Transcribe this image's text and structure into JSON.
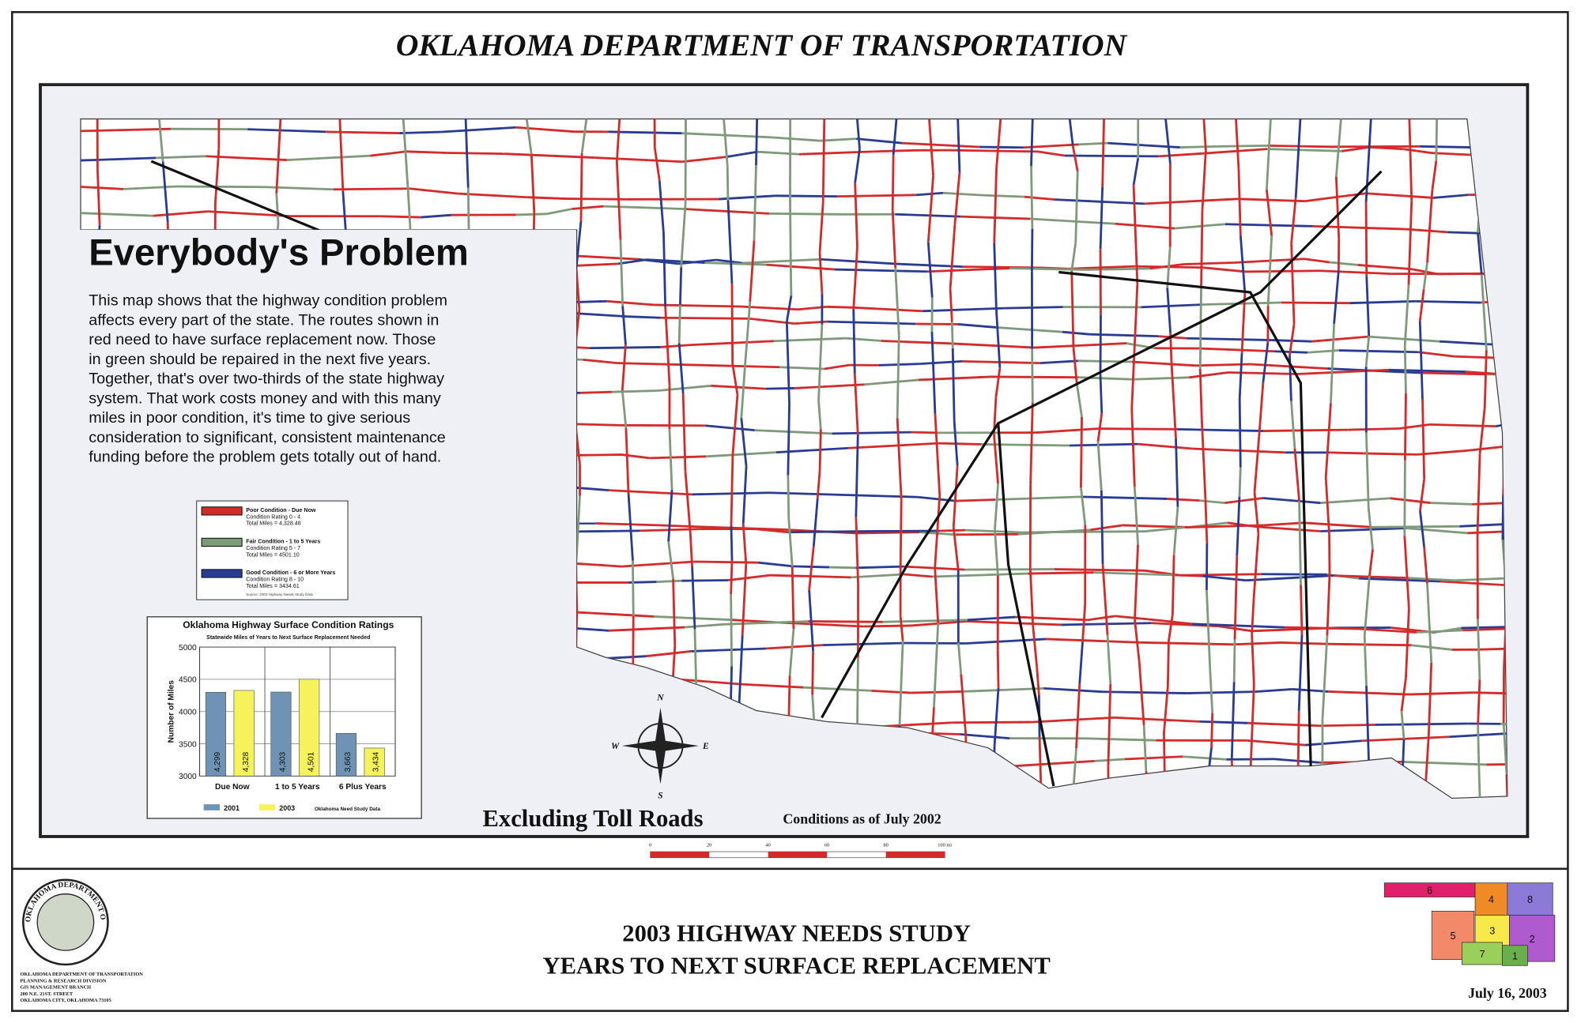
{
  "header": {
    "title": "OKLAHOMA DEPARTMENT OF TRANSPORTATION"
  },
  "panel": {
    "heading": "Everybody's Problem",
    "body_lines": [
      "This map shows that the highway condition problem",
      "affects every part of the state.  The routes shown in",
      "red need to have surface replacement now.  Those",
      "in green should be repaired in the next five years.",
      "Together, that's over two-thirds of the state highway",
      "system.  That work costs money and with this many",
      "miles in poor condition, it's time to give serious",
      "consideration to significant, consistent maintenance",
      "funding before the problem gets totally out of hand."
    ]
  },
  "legend": {
    "items": [
      {
        "color": "#d42a2a",
        "lines": [
          "Poor Condition - Due Now",
          "Condition Rating 0 - 4",
          "Total Miles = 4,328.48"
        ]
      },
      {
        "color": "#7f9a7a",
        "lines": [
          "Fair Condition - 1 to 5 Years",
          "Condition Rating 5 - 7",
          "Total Miles = 4501.10"
        ]
      },
      {
        "color": "#283c96",
        "lines": [
          "Good Condition - 6 or More Years",
          "Condition Rating 8 - 10",
          "Total Miles = 3434.61"
        ]
      }
    ],
    "source": "Source: 2003 Highway Needs Study Data"
  },
  "chart_data": {
    "type": "bar",
    "title": "Oklahoma Highway Surface Condition Ratings",
    "subtitle": "Statewide Miles of Years to Next Surface Replacement Needed",
    "y_label": "Number of Miles",
    "note": "Oklahoma Need Study Data",
    "categories": [
      "Due Now",
      "1 to 5 Years",
      "6 Plus Years"
    ],
    "series": [
      {
        "name": "2001",
        "color": "#6f93b4",
        "values": [
          4299,
          4303,
          3663
        ],
        "value_labels": [
          "4,299",
          "4,303",
          "3,663"
        ]
      },
      {
        "name": "2003",
        "color": "#f5f25a",
        "values": [
          4328,
          4501,
          3434
        ],
        "value_labels": [
          "4,328",
          "4,501",
          "3,434"
        ]
      }
    ],
    "ylim": [
      3000,
      5000
    ],
    "yticks": [
      3000,
      3500,
      4000,
      4500,
      5000
    ],
    "grid": true
  },
  "map": {
    "caption": "Excluding Toll Roads",
    "conditions": "Conditions as of July  2002",
    "compass": [
      "N",
      "E",
      "S",
      "W"
    ],
    "scale_labels": [
      "0",
      "20",
      "40",
      "60",
      "80",
      "100 mi"
    ]
  },
  "footer": {
    "logo_text": "OKLAHOMA DEPARTMENT OF TRANSPORTATION",
    "address": [
      "OKLAHOMA DEPARTMENT OF TRANSPORTATION",
      "PLANNING & RESEARCH DIVISION",
      "GIS MANAGEMENT BRANCH",
      "200 N.E. 21ST. STREET",
      "OKLAHOMA CITY, OKLAHOMA 73105"
    ],
    "title_lines": [
      "2003 HIGHWAY NEEDS STUDY",
      "YEARS TO NEXT SURFACE REPLACEMENT"
    ],
    "districts": [
      "6",
      "4",
      "8",
      "5",
      "3",
      "7",
      "2",
      "1"
    ],
    "date": "July 16, 2003"
  }
}
